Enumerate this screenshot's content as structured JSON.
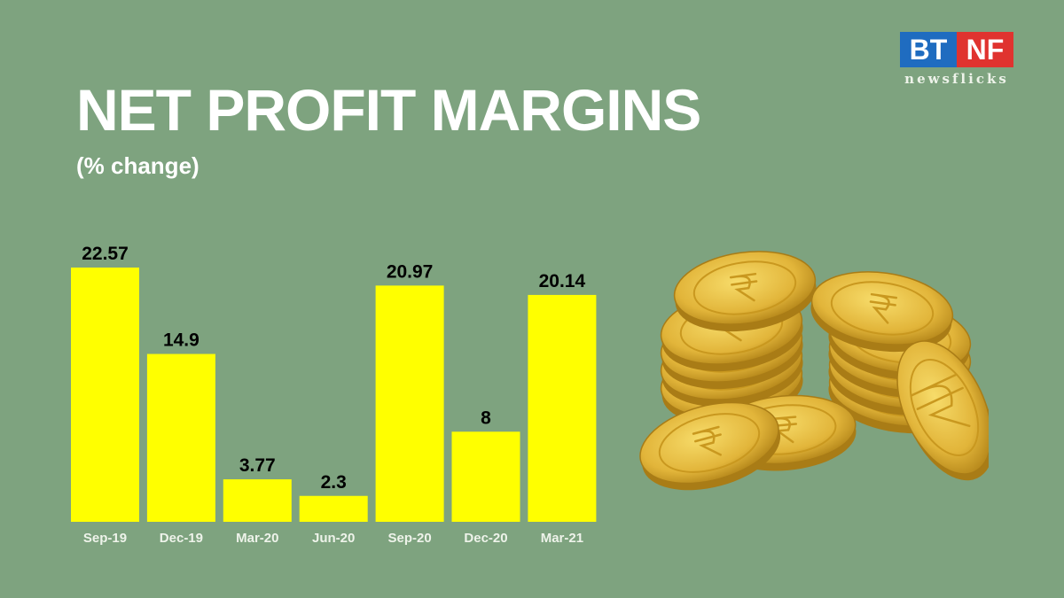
{
  "logo": {
    "left": "BT",
    "right": "NF",
    "tagline": "newsflicks"
  },
  "chart_data": {
    "type": "bar",
    "title": "NET PROFIT MARGINS",
    "subtitle": "(% change)",
    "categories": [
      "Sep-19",
      "Dec-19",
      "Mar-20",
      "Jun-20",
      "Sep-20",
      "Dec-20",
      "Mar-21"
    ],
    "values": [
      22.57,
      14.9,
      3.77,
      2.3,
      20.97,
      8,
      20.14
    ],
    "data_labels": [
      "22.57",
      "14.9",
      "3.77",
      "2.3",
      "20.97",
      "8",
      "20.14"
    ],
    "xlabel": "",
    "ylabel": "",
    "ylim": [
      0,
      22.57
    ],
    "grid": false,
    "bar_color": "#ffff00",
    "background": "#7ea37f"
  }
}
